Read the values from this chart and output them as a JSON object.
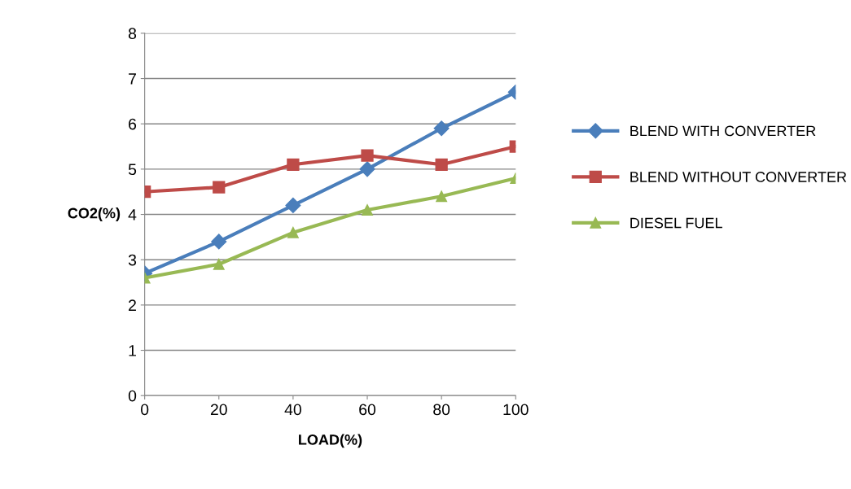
{
  "chart_data": {
    "type": "line",
    "xlabel": "LOAD(%)",
    "ylabel": "CO2(%)",
    "x": [
      0,
      20,
      40,
      60,
      80,
      100
    ],
    "series": [
      {
        "name": "BLEND WITH CONVERTER",
        "color": "#4a7ebb",
        "marker": "diamond",
        "values": [
          2.7,
          3.4,
          4.2,
          5.0,
          5.9,
          6.7
        ]
      },
      {
        "name": "BLEND WITHOUT CONVERTER",
        "color": "#be4b48",
        "marker": "square",
        "values": [
          4.5,
          4.6,
          5.1,
          5.3,
          5.1,
          5.5
        ]
      },
      {
        "name": "DIESEL FUEL",
        "color": "#98b954",
        "marker": "triangle",
        "values": [
          2.6,
          2.9,
          3.6,
          4.1,
          4.4,
          4.8
        ]
      }
    ],
    "xlim": [
      0,
      100
    ],
    "xticks": [
      0,
      20,
      40,
      60,
      80,
      100
    ],
    "ylim": [
      0,
      8
    ],
    "yticks": [
      0,
      1,
      2,
      3,
      4,
      5,
      6,
      7,
      8
    ],
    "grid": "y",
    "legend": "right",
    "line_style": "solid"
  }
}
